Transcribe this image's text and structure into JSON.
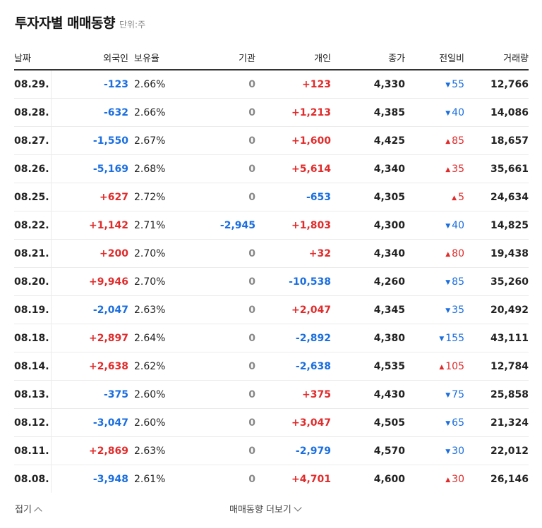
{
  "title": "투자자별 매매동향",
  "unit": "단위:주",
  "columns": [
    "날짜",
    "외국인",
    "보유율",
    "기관",
    "개인",
    "종가",
    "전일비",
    "거래량"
  ],
  "rows": [
    {
      "date": "08.29.",
      "foreign": "-123",
      "ratio": "2.66%",
      "inst": "0",
      "indiv": "+123",
      "close": "4,330",
      "dir": "down",
      "diff": "55",
      "volume": "12,766"
    },
    {
      "date": "08.28.",
      "foreign": "-632",
      "ratio": "2.66%",
      "inst": "0",
      "indiv": "+1,213",
      "close": "4,385",
      "dir": "down",
      "diff": "40",
      "volume": "14,086"
    },
    {
      "date": "08.27.",
      "foreign": "-1,550",
      "ratio": "2.67%",
      "inst": "0",
      "indiv": "+1,600",
      "close": "4,425",
      "dir": "up",
      "diff": "85",
      "volume": "18,657"
    },
    {
      "date": "08.26.",
      "foreign": "-5,169",
      "ratio": "2.68%",
      "inst": "0",
      "indiv": "+5,614",
      "close": "4,340",
      "dir": "up",
      "diff": "35",
      "volume": "35,661"
    },
    {
      "date": "08.25.",
      "foreign": "+627",
      "ratio": "2.72%",
      "inst": "0",
      "indiv": "-653",
      "close": "4,305",
      "dir": "up",
      "diff": "5",
      "volume": "24,634"
    },
    {
      "date": "08.22.",
      "foreign": "+1,142",
      "ratio": "2.71%",
      "inst": "-2,945",
      "indiv": "+1,803",
      "close": "4,300",
      "dir": "down",
      "diff": "40",
      "volume": "14,825"
    },
    {
      "date": "08.21.",
      "foreign": "+200",
      "ratio": "2.70%",
      "inst": "0",
      "indiv": "+32",
      "close": "4,340",
      "dir": "up",
      "diff": "80",
      "volume": "19,438"
    },
    {
      "date": "08.20.",
      "foreign": "+9,946",
      "ratio": "2.70%",
      "inst": "0",
      "indiv": "-10,538",
      "close": "4,260",
      "dir": "down",
      "diff": "85",
      "volume": "35,260"
    },
    {
      "date": "08.19.",
      "foreign": "-2,047",
      "ratio": "2.63%",
      "inst": "0",
      "indiv": "+2,047",
      "close": "4,345",
      "dir": "down",
      "diff": "35",
      "volume": "20,492"
    },
    {
      "date": "08.18.",
      "foreign": "+2,897",
      "ratio": "2.64%",
      "inst": "0",
      "indiv": "-2,892",
      "close": "4,380",
      "dir": "down",
      "diff": "155",
      "volume": "43,111"
    },
    {
      "date": "08.14.",
      "foreign": "+2,638",
      "ratio": "2.62%",
      "inst": "0",
      "indiv": "-2,638",
      "close": "4,535",
      "dir": "up",
      "diff": "105",
      "volume": "12,784"
    },
    {
      "date": "08.13.",
      "foreign": "-375",
      "ratio": "2.60%",
      "inst": "0",
      "indiv": "+375",
      "close": "4,430",
      "dir": "down",
      "diff": "75",
      "volume": "25,858"
    },
    {
      "date": "08.12.",
      "foreign": "-3,047",
      "ratio": "2.60%",
      "inst": "0",
      "indiv": "+3,047",
      "close": "4,505",
      "dir": "down",
      "diff": "65",
      "volume": "21,324"
    },
    {
      "date": "08.11.",
      "foreign": "+2,869",
      "ratio": "2.63%",
      "inst": "0",
      "indiv": "-2,979",
      "close": "4,570",
      "dir": "down",
      "diff": "30",
      "volume": "22,012"
    },
    {
      "date": "08.08.",
      "foreign": "-3,948",
      "ratio": "2.61%",
      "inst": "0",
      "indiv": "+4,701",
      "close": "4,600",
      "dir": "up",
      "diff": "30",
      "volume": "26,146"
    }
  ],
  "footer": {
    "fold": "접기",
    "more": "매매동향 더보기"
  },
  "colors": {
    "up": "#e12b2b",
    "down": "#1a6ee0",
    "zero": "#888888"
  },
  "icons": {
    "up": "triangle-up-icon",
    "down": "triangle-down-icon",
    "fold": "chevron-up-icon",
    "more": "chevron-down-icon"
  }
}
